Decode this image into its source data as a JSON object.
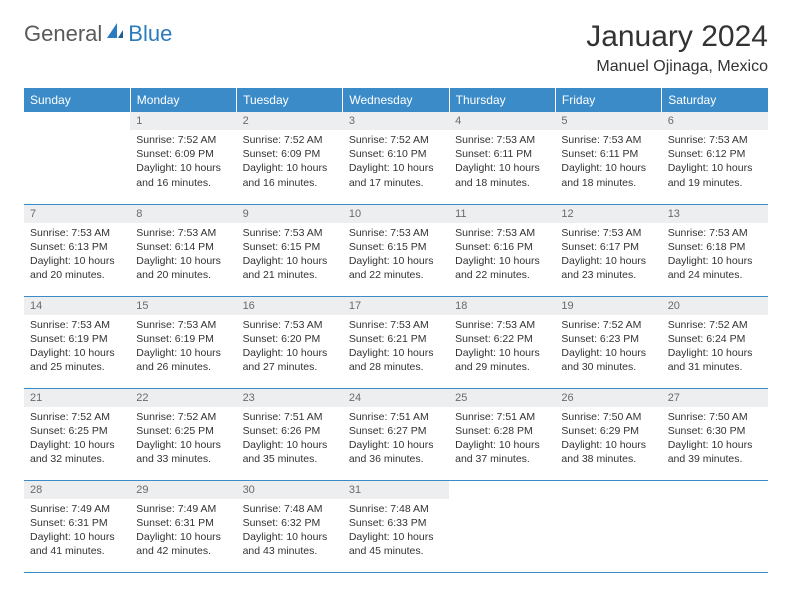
{
  "brand": {
    "name_a": "General",
    "name_b": "Blue"
  },
  "title": "January 2024",
  "location": "Manuel Ojinaga, Mexico",
  "colors": {
    "header_bg": "#3b8bc9",
    "header_text": "#ffffff",
    "daynum_bg": "#eceeef",
    "daynum_text": "#6b6b6b",
    "border": "#3b8bc9",
    "body_text": "#333333",
    "logo_gray": "#5a5a5a",
    "logo_blue": "#2b7bbf"
  },
  "weekdays": [
    "Sunday",
    "Monday",
    "Tuesday",
    "Wednesday",
    "Thursday",
    "Friday",
    "Saturday"
  ],
  "start_offset": 1,
  "days": [
    {
      "n": 1,
      "sunrise": "7:52 AM",
      "sunset": "6:09 PM",
      "daylight": "10 hours and 16 minutes."
    },
    {
      "n": 2,
      "sunrise": "7:52 AM",
      "sunset": "6:09 PM",
      "daylight": "10 hours and 16 minutes."
    },
    {
      "n": 3,
      "sunrise": "7:52 AM",
      "sunset": "6:10 PM",
      "daylight": "10 hours and 17 minutes."
    },
    {
      "n": 4,
      "sunrise": "7:53 AM",
      "sunset": "6:11 PM",
      "daylight": "10 hours and 18 minutes."
    },
    {
      "n": 5,
      "sunrise": "7:53 AM",
      "sunset": "6:11 PM",
      "daylight": "10 hours and 18 minutes."
    },
    {
      "n": 6,
      "sunrise": "7:53 AM",
      "sunset": "6:12 PM",
      "daylight": "10 hours and 19 minutes."
    },
    {
      "n": 7,
      "sunrise": "7:53 AM",
      "sunset": "6:13 PM",
      "daylight": "10 hours and 20 minutes."
    },
    {
      "n": 8,
      "sunrise": "7:53 AM",
      "sunset": "6:14 PM",
      "daylight": "10 hours and 20 minutes."
    },
    {
      "n": 9,
      "sunrise": "7:53 AM",
      "sunset": "6:15 PM",
      "daylight": "10 hours and 21 minutes."
    },
    {
      "n": 10,
      "sunrise": "7:53 AM",
      "sunset": "6:15 PM",
      "daylight": "10 hours and 22 minutes."
    },
    {
      "n": 11,
      "sunrise": "7:53 AM",
      "sunset": "6:16 PM",
      "daylight": "10 hours and 22 minutes."
    },
    {
      "n": 12,
      "sunrise": "7:53 AM",
      "sunset": "6:17 PM",
      "daylight": "10 hours and 23 minutes."
    },
    {
      "n": 13,
      "sunrise": "7:53 AM",
      "sunset": "6:18 PM",
      "daylight": "10 hours and 24 minutes."
    },
    {
      "n": 14,
      "sunrise": "7:53 AM",
      "sunset": "6:19 PM",
      "daylight": "10 hours and 25 minutes."
    },
    {
      "n": 15,
      "sunrise": "7:53 AM",
      "sunset": "6:19 PM",
      "daylight": "10 hours and 26 minutes."
    },
    {
      "n": 16,
      "sunrise": "7:53 AM",
      "sunset": "6:20 PM",
      "daylight": "10 hours and 27 minutes."
    },
    {
      "n": 17,
      "sunrise": "7:53 AM",
      "sunset": "6:21 PM",
      "daylight": "10 hours and 28 minutes."
    },
    {
      "n": 18,
      "sunrise": "7:53 AM",
      "sunset": "6:22 PM",
      "daylight": "10 hours and 29 minutes."
    },
    {
      "n": 19,
      "sunrise": "7:52 AM",
      "sunset": "6:23 PM",
      "daylight": "10 hours and 30 minutes."
    },
    {
      "n": 20,
      "sunrise": "7:52 AM",
      "sunset": "6:24 PM",
      "daylight": "10 hours and 31 minutes."
    },
    {
      "n": 21,
      "sunrise": "7:52 AM",
      "sunset": "6:25 PM",
      "daylight": "10 hours and 32 minutes."
    },
    {
      "n": 22,
      "sunrise": "7:52 AM",
      "sunset": "6:25 PM",
      "daylight": "10 hours and 33 minutes."
    },
    {
      "n": 23,
      "sunrise": "7:51 AM",
      "sunset": "6:26 PM",
      "daylight": "10 hours and 35 minutes."
    },
    {
      "n": 24,
      "sunrise": "7:51 AM",
      "sunset": "6:27 PM",
      "daylight": "10 hours and 36 minutes."
    },
    {
      "n": 25,
      "sunrise": "7:51 AM",
      "sunset": "6:28 PM",
      "daylight": "10 hours and 37 minutes."
    },
    {
      "n": 26,
      "sunrise": "7:50 AM",
      "sunset": "6:29 PM",
      "daylight": "10 hours and 38 minutes."
    },
    {
      "n": 27,
      "sunrise": "7:50 AM",
      "sunset": "6:30 PM",
      "daylight": "10 hours and 39 minutes."
    },
    {
      "n": 28,
      "sunrise": "7:49 AM",
      "sunset": "6:31 PM",
      "daylight": "10 hours and 41 minutes."
    },
    {
      "n": 29,
      "sunrise": "7:49 AM",
      "sunset": "6:31 PM",
      "daylight": "10 hours and 42 minutes."
    },
    {
      "n": 30,
      "sunrise": "7:48 AM",
      "sunset": "6:32 PM",
      "daylight": "10 hours and 43 minutes."
    },
    {
      "n": 31,
      "sunrise": "7:48 AM",
      "sunset": "6:33 PM",
      "daylight": "10 hours and 45 minutes."
    }
  ],
  "labels": {
    "sunrise": "Sunrise:",
    "sunset": "Sunset:",
    "daylight": "Daylight:"
  }
}
